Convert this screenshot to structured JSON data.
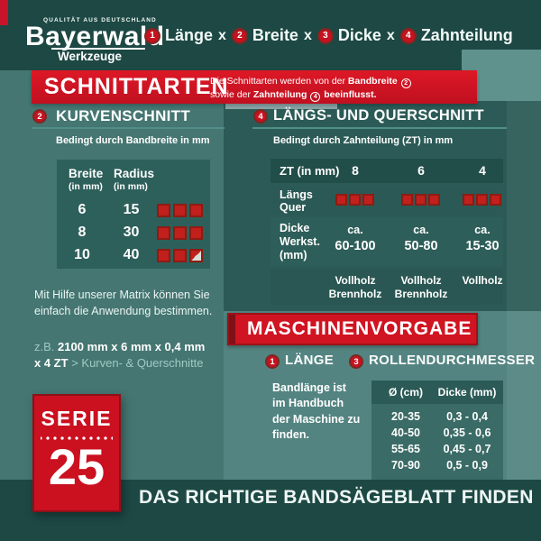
{
  "colors": {
    "accent_red": "#ce1422",
    "dark_teal": "#1d4844",
    "panel_dark": "#2c5b57",
    "panel_light": "#538481",
    "muted_teal_text": "#9fcac4"
  },
  "header": {
    "quality_label": "QUALITÄT AUS DEUTSCHLAND",
    "brand": "Bayerwald",
    "brand_sub": "Werkzeuge",
    "sep": "x",
    "formula": [
      {
        "num": "1",
        "label": "Länge"
      },
      {
        "num": "2",
        "label": "Breite"
      },
      {
        "num": "3",
        "label": "Dicke"
      },
      {
        "num": "4",
        "label": "Zahnteilung"
      }
    ]
  },
  "schnittarten": {
    "title": "SCHNITTARTEN",
    "desc1_text": "Die Schnittarten werden von der",
    "desc1_bold": "Bandbreite",
    "desc1_num": "2",
    "desc2_text": "sowie der",
    "desc2_bold": "Zahnteilung",
    "desc2_num": "4",
    "desc2_tail": "beeinflusst."
  },
  "kurvenschnitt": {
    "num": "2",
    "title": "KURVENSCHNITT",
    "subtitle": "Bedingt durch Bandbreite in mm",
    "table": {
      "col1_label": "Breite",
      "col1_unit": "(in mm)",
      "col2_label": "Radius",
      "col2_unit": "(in mm)",
      "rows": [
        {
          "breite": "6",
          "radius": "15",
          "icons": [
            "full",
            "full",
            "full"
          ]
        },
        {
          "breite": "8",
          "radius": "30",
          "icons": [
            "full",
            "full",
            "full"
          ]
        },
        {
          "breite": "10",
          "radius": "40",
          "icons": [
            "full",
            "full",
            "half"
          ]
        }
      ]
    }
  },
  "matrix": {
    "paragraph": "Mit Hilfe unserer Matrix können Sie einfach die Anwendung bestimmen.",
    "example_prefix": "z.B.",
    "example_value": "2100 mm x 6 mm x 0,4 mm",
    "example_value2": "x 4 ZT",
    "example_result": "> Kurven- & Querschnitte"
  },
  "laengsquer": {
    "num": "4",
    "title": "LÄNGS- UND QUERSCHNITT",
    "subtitle": "Bedingt durch Zahnteilung (ZT) in mm",
    "table": {
      "header_label": "ZT (in mm)",
      "columns": [
        "8",
        "6",
        "4"
      ],
      "row_cut": {
        "label_line1": "Längs",
        "label_line2": "Quer",
        "icons_col1": [
          "full",
          "full",
          "full"
        ],
        "icons_col2": [
          "full",
          "full",
          "full"
        ],
        "icons_col3": [
          "full",
          "full",
          "full"
        ]
      },
      "row_dicke": {
        "label_line1": "Dicke",
        "label_line2": "Werkst.",
        "label_line3": "(mm)",
        "values": [
          {
            "prefix": "ca.",
            "range": "60-100"
          },
          {
            "prefix": "ca.",
            "range": "50-80"
          },
          {
            "prefix": "ca.",
            "range": "15-30"
          }
        ]
      },
      "row_wood": {
        "values": [
          {
            "line1": "Vollholz",
            "line2": "Brennholz"
          },
          {
            "line1": "Vollholz",
            "line2": "Brennholz"
          },
          {
            "line1": "Vollholz",
            "line2": ""
          }
        ]
      }
    }
  },
  "maschinenvorgabe": {
    "title": "MASCHINENVORGABE",
    "laenge": {
      "num": "1",
      "title": "LÄNGE",
      "text": "Bandlänge ist im Handbuch der Maschine zu finden."
    },
    "rollen": {
      "num": "3",
      "title": "ROLLENDURCHMESSER",
      "table": {
        "col1": "Ø (cm)",
        "col2": "Dicke (mm)",
        "rows": [
          {
            "d": "20-35",
            "t": "0,3 - 0,4"
          },
          {
            "d": "40-50",
            "t": "0,35 - 0,6"
          },
          {
            "d": "55-65",
            "t": "0,45 - 0,7"
          },
          {
            "d": "70-90",
            "t": "0,5 - 0,9"
          }
        ]
      }
    }
  },
  "serie": {
    "label": "SERIE",
    "number": "25"
  },
  "footer": {
    "title": "DAS RICHTIGE BANDSÄGEBLATT FINDEN"
  }
}
